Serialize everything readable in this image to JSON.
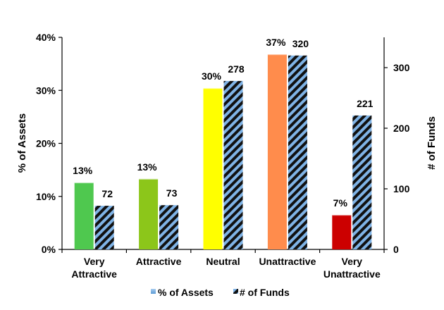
{
  "chart_data": {
    "type": "bar",
    "categories": [
      [
        "Very",
        "Attractive"
      ],
      [
        "Attractive"
      ],
      [
        "Neutral"
      ],
      [
        "Unattractive"
      ],
      [
        "Very",
        "Unattractive"
      ]
    ],
    "series": [
      {
        "name": "% of Assets",
        "axis": "left",
        "values": [
          0.126,
          0.133,
          0.304,
          0.368,
          0.065
        ],
        "labels": [
          "13%",
          "13%",
          "30%",
          "37%",
          "7%"
        ],
        "colors": [
          "#4fc84f",
          "#8cc61a",
          "#ffff00",
          "#ff8c4c",
          "#cc0000"
        ]
      },
      {
        "name": "# of Funds",
        "axis": "right",
        "values": [
          72,
          73,
          278,
          320,
          221
        ],
        "labels": [
          "72",
          "73",
          "278",
          "320",
          "221"
        ],
        "pattern": "black-blue-diagonal-stripes"
      }
    ],
    "ylabel": "% of Assets",
    "ylabel_right": "# of Funds",
    "ylim": [
      0,
      0.4
    ],
    "ylim_right": [
      0,
      350
    ],
    "yticks": [
      0,
      0.1,
      0.2,
      0.3,
      0.4
    ],
    "ytick_labels": [
      "0%",
      "10%",
      "20%",
      "30%",
      "40%"
    ],
    "yticks_right": [
      0,
      100,
      200,
      300
    ],
    "ytick_labels_right": [
      "0",
      "100",
      "200",
      "300"
    ],
    "grid": false,
    "legend_position": "bottom"
  }
}
